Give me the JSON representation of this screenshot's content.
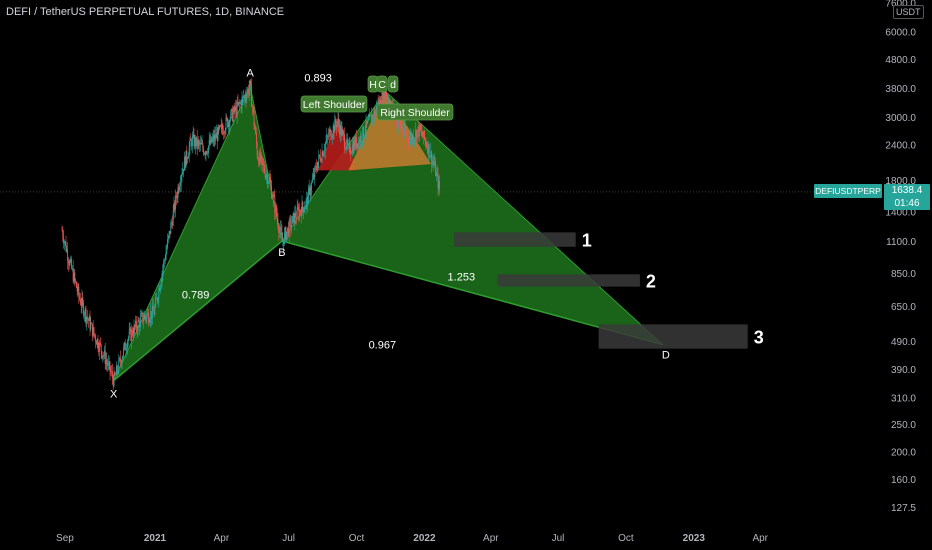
{
  "title": "DEFI / TetherUS PERPETUAL FUTURES, 1D, BINANCE",
  "unit": "USDT",
  "ticker_badge": "DEFIUSDTPERP",
  "last_price": "1638.4",
  "countdown": "01:46",
  "colors": {
    "bull": "#26a69a",
    "bear": "#ef5350",
    "pattern_green": "#1f7a1f",
    "shoulder_red": "#b71c1c",
    "shoulder_orange": "#c67a2e",
    "label_bg": "#3f7a2f",
    "target_box": "#3a3a3a"
  },
  "chart_data": {
    "type": "candlestick",
    "scale": "log",
    "price_ticks": [
      "7600.0",
      "6000.0",
      "4800.0",
      "3800.0",
      "3000.0",
      "2400.0",
      "1800.0",
      "1400.0",
      "1100.0",
      "850.0",
      "650.0",
      "490.0",
      "390.0",
      "310.0",
      "250.0",
      "200.0",
      "160.0",
      "127.5"
    ],
    "time_ticks": [
      "Sep",
      "2021",
      "Apr",
      "Jul",
      "Oct",
      "2022",
      "Apr",
      "Jul",
      "Oct",
      "2023",
      "Apr"
    ],
    "harmonic_points": [
      {
        "label": "X",
        "date": "2020-11-06",
        "price": 355
      },
      {
        "label": "A",
        "date": "2021-05-10",
        "price": 3850
      },
      {
        "label": "B",
        "date": "2021-06-22",
        "price": 1100
      },
      {
        "label": "C",
        "date": "2021-11-09",
        "price": 3700
      },
      {
        "label": "D",
        "date": "2022-11-20",
        "price": 475
      }
    ],
    "ratios": [
      "0.789",
      "0.893",
      "1.253",
      "0.967"
    ],
    "pattern_labels": [
      "Left Shoulder",
      "H",
      "C",
      "d",
      "Right Shoulder"
    ],
    "targets": [
      {
        "label": "1",
        "from": "2022-02-10",
        "to": "2022-07-25",
        "low": 1050,
        "high": 1180
      },
      {
        "label": "2",
        "from": "2022-04-10",
        "to": "2022-10-20",
        "low": 760,
        "high": 840
      },
      {
        "label": "3",
        "from": "2022-08-25",
        "to": "2023-03-15",
        "low": 460,
        "high": 560
      }
    ],
    "candles_approx": {
      "start": "2020-08-28",
      "end": "2022-01-22",
      "anchors": [
        [
          "2020-08-28",
          1200
        ],
        [
          "2020-09-05",
          980
        ],
        [
          "2020-09-20",
          700
        ],
        [
          "2020-10-10",
          520
        ],
        [
          "2020-10-25",
          430
        ],
        [
          "2020-11-06",
          355
        ],
        [
          "2020-11-25",
          500
        ],
        [
          "2020-12-15",
          590
        ],
        [
          "2020-12-31",
          620
        ],
        [
          "2021-01-15",
          980
        ],
        [
          "2021-02-05",
          1900
        ],
        [
          "2021-02-20",
          2500
        ],
        [
          "2021-03-10",
          2300
        ],
        [
          "2021-04-05",
          2800
        ],
        [
          "2021-04-25",
          3300
        ],
        [
          "2021-05-10",
          3850
        ],
        [
          "2021-05-20",
          2200
        ],
        [
          "2021-06-05",
          1800
        ],
        [
          "2021-06-22",
          1100
        ],
        [
          "2021-07-10",
          1350
        ],
        [
          "2021-07-25",
          1500
        ],
        [
          "2021-08-10",
          2100
        ],
        [
          "2021-08-25",
          2600
        ],
        [
          "2021-09-05",
          2900
        ],
        [
          "2021-09-20",
          2300
        ],
        [
          "2021-10-05",
          2500
        ],
        [
          "2021-10-25",
          3100
        ],
        [
          "2021-11-09",
          3700
        ],
        [
          "2021-11-25",
          2900
        ],
        [
          "2021-12-10",
          2500
        ],
        [
          "2021-12-25",
          2700
        ],
        [
          "2022-01-05",
          2400
        ],
        [
          "2022-01-15",
          2000
        ],
        [
          "2022-01-22",
          1640
        ]
      ]
    }
  }
}
